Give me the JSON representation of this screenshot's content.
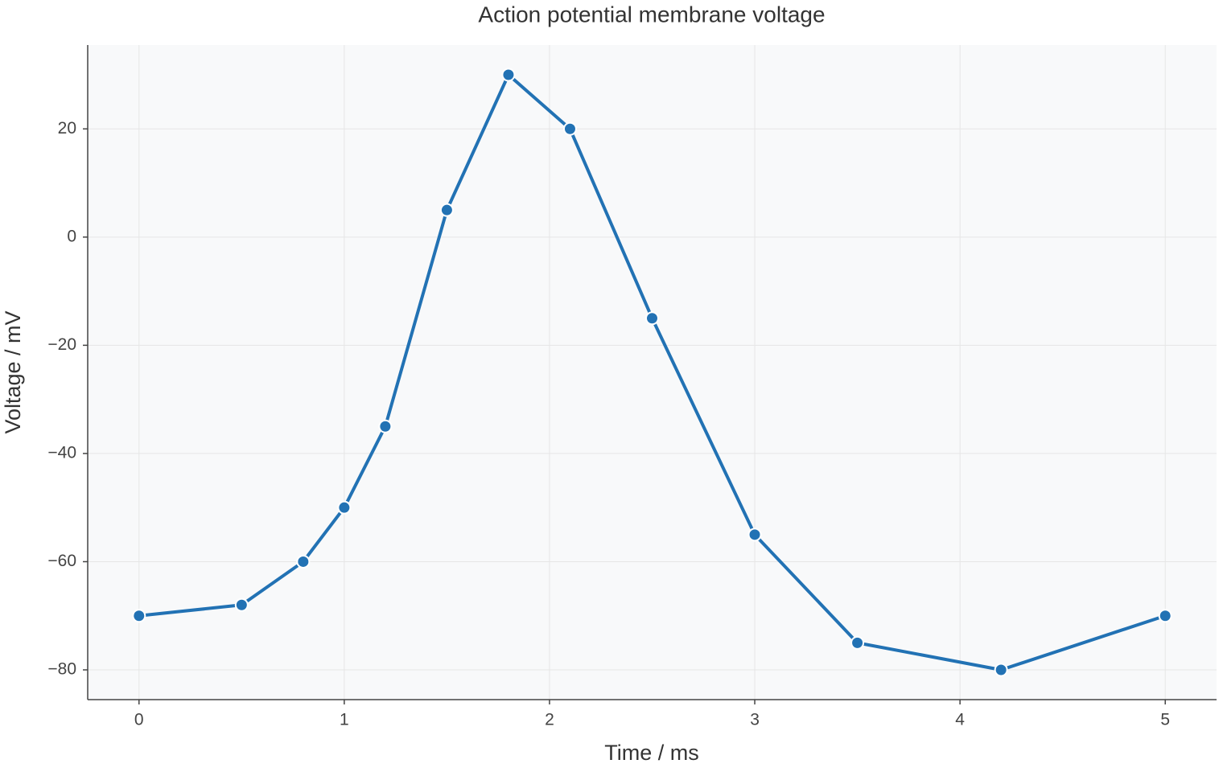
{
  "chart_data": {
    "type": "line",
    "title": "Action potential membrane voltage",
    "x_label": "Time / ms",
    "y_label": "Voltage / mV",
    "x": [
      0,
      0.5,
      0.8,
      1.0,
      1.2,
      1.5,
      1.8,
      2.1,
      2.5,
      3.0,
      3.5,
      4.2,
      5.0
    ],
    "series": [
      {
        "name": "Voltage",
        "color": "#2272b4",
        "values": [
          -70,
          -68,
          -60,
          -50,
          -35,
          5,
          30,
          20,
          -15,
          -55,
          -75,
          -80,
          -70
        ]
      }
    ],
    "xlim": [
      -0.25,
      5.25
    ],
    "ylim": [
      -85.5,
      35.5
    ],
    "xticks": [
      0,
      1,
      2,
      3,
      4,
      5
    ],
    "yticks": [
      {
        "value": -80,
        "label": "−80"
      },
      {
        "value": -60,
        "label": "−60"
      },
      {
        "value": -40,
        "label": "−40"
      },
      {
        "value": -20,
        "label": "−20"
      },
      0,
      20
    ],
    "grid": true
  }
}
